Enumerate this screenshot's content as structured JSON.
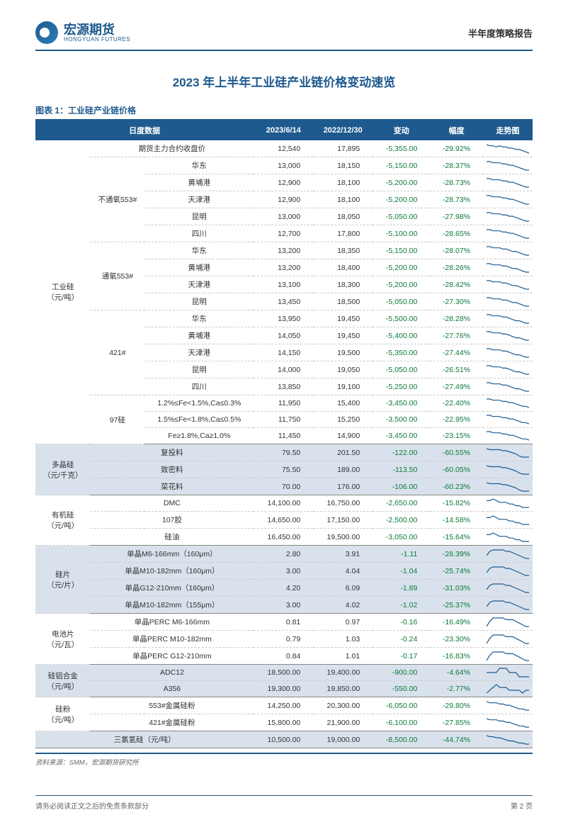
{
  "header": {
    "logo_cn": "宏源期货",
    "logo_en": "HONGYUAN FUTURES",
    "report_type": "半年度策略报告"
  },
  "main_title": "2023 年上半年工业硅产业链价格变动速览",
  "chart_label": "图表 1：工业硅产业链价格",
  "columns": {
    "daily": "日度数据",
    "d1": "2023/6/14",
    "d2": "2022/12/30",
    "change": "变动",
    "pct": "幅度",
    "trend": "走势图"
  },
  "colors": {
    "header_bg": "#1e5a8e",
    "stripe_even": "#d9e2ec",
    "negative": "#0a7a3a",
    "sparkline": "#1e5a8e"
  },
  "groups": [
    {
      "cat1": "工业硅\n（元/吨）",
      "rows": [
        {
          "cat2": "",
          "label": "期货主力合约收盘价",
          "v1": "12,540",
          "v2": "17,895",
          "chg": "-5,355.00",
          "pct": "-29.92%",
          "spark": [
            10,
            9,
            9,
            8,
            9,
            8,
            8,
            7,
            7,
            6,
            6,
            5,
            4,
            3
          ]
        },
        {
          "cat2": "不通氧553#",
          "label": "华东",
          "v1": "13,000",
          "v2": "18,150",
          "chg": "-5,150.00",
          "pct": "-28.37%",
          "spark": [
            10,
            10,
            9,
            9,
            9,
            8,
            8,
            7,
            7,
            6,
            5,
            4,
            3,
            3
          ]
        },
        {
          "cat2": "",
          "label": "黄埔港",
          "v1": "12,900",
          "v2": "18,100",
          "chg": "-5,200.00",
          "pct": "-28.73%",
          "spark": [
            10,
            10,
            9,
            9,
            9,
            8,
            8,
            7,
            7,
            6,
            5,
            4,
            3,
            3
          ]
        },
        {
          "cat2": "",
          "label": "天津港",
          "v1": "12,900",
          "v2": "18,100",
          "chg": "-5,200.00",
          "pct": "-28.73%",
          "spark": [
            10,
            10,
            9,
            9,
            9,
            8,
            8,
            7,
            7,
            6,
            5,
            4,
            3,
            3
          ]
        },
        {
          "cat2": "",
          "label": "昆明",
          "v1": "13,000",
          "v2": "18,050",
          "chg": "-5,050.00",
          "pct": "-27.98%",
          "spark": [
            10,
            10,
            9,
            9,
            9,
            8,
            8,
            7,
            7,
            6,
            5,
            4,
            3,
            3
          ]
        },
        {
          "cat2": "",
          "label": "四川",
          "v1": "12,700",
          "v2": "17,800",
          "chg": "-5,100.00",
          "pct": "-28.65%",
          "spark": [
            10,
            10,
            9,
            9,
            9,
            8,
            8,
            7,
            7,
            6,
            5,
            4,
            3,
            3
          ]
        },
        {
          "cat2": "通氧553#",
          "label": "华东",
          "v1": "13,200",
          "v2": "18,350",
          "chg": "-5,150.00",
          "pct": "-28.07%",
          "spark": [
            10,
            10,
            9,
            9,
            9,
            8,
            8,
            7,
            6,
            6,
            5,
            4,
            3,
            3
          ]
        },
        {
          "cat2": "",
          "label": "黄埔港",
          "v1": "13,200",
          "v2": "18,400",
          "chg": "-5,200.00",
          "pct": "-28.26%",
          "spark": [
            10,
            10,
            9,
            9,
            9,
            8,
            8,
            7,
            6,
            6,
            5,
            4,
            3,
            3
          ]
        },
        {
          "cat2": "",
          "label": "天津港",
          "v1": "13,100",
          "v2": "18,300",
          "chg": "-5,200.00",
          "pct": "-28.42%",
          "spark": [
            10,
            10,
            9,
            9,
            9,
            8,
            8,
            7,
            6,
            6,
            5,
            4,
            3,
            3
          ]
        },
        {
          "cat2": "",
          "label": "昆明",
          "v1": "13,450",
          "v2": "18,500",
          "chg": "-5,050.00",
          "pct": "-27.30%",
          "spark": [
            10,
            10,
            9,
            9,
            9,
            8,
            8,
            7,
            6,
            6,
            5,
            4,
            3,
            3
          ]
        },
        {
          "cat2": "421#",
          "label": "华东",
          "v1": "13,950",
          "v2": "19,450",
          "chg": "-5,500.00",
          "pct": "-28.28%",
          "spark": [
            10,
            10,
            9,
            9,
            9,
            8,
            8,
            7,
            6,
            5,
            5,
            4,
            3,
            3
          ]
        },
        {
          "cat2": "",
          "label": "黄埔港",
          "v1": "14,050",
          "v2": "19,450",
          "chg": "-5,400.00",
          "pct": "-27.76%",
          "spark": [
            10,
            10,
            9,
            9,
            9,
            8,
            8,
            7,
            6,
            5,
            5,
            4,
            3,
            3
          ]
        },
        {
          "cat2": "",
          "label": "天津港",
          "v1": "14,150",
          "v2": "19,500",
          "chg": "-5,350.00",
          "pct": "-27.44%",
          "spark": [
            10,
            10,
            9,
            9,
            9,
            8,
            8,
            7,
            6,
            5,
            5,
            4,
            3,
            3
          ]
        },
        {
          "cat2": "",
          "label": "昆明",
          "v1": "14,000",
          "v2": "19,050",
          "chg": "-5,050.00",
          "pct": "-26.51%",
          "spark": [
            10,
            10,
            9,
            9,
            9,
            8,
            8,
            7,
            6,
            5,
            5,
            4,
            3,
            3
          ]
        },
        {
          "cat2": "",
          "label": "四川",
          "v1": "13,850",
          "v2": "19,100",
          "chg": "-5,250.00",
          "pct": "-27.49%",
          "spark": [
            10,
            10,
            9,
            9,
            9,
            8,
            8,
            7,
            6,
            5,
            5,
            4,
            3,
            3
          ]
        },
        {
          "cat2": "97硅",
          "label": "1.2%≤Fe<1.5%,Ca≤0.3%",
          "v1": "11,950",
          "v2": "15,400",
          "chg": "-3,450.00",
          "pct": "-22.40%",
          "spark": [
            10,
            10,
            9,
            9,
            9,
            8,
            8,
            7,
            7,
            6,
            5,
            4,
            4,
            3
          ]
        },
        {
          "cat2": "",
          "label": "1.5%≤Fe<1.8%,Ca≤0.5%",
          "v1": "11,750",
          "v2": "15,250",
          "chg": "-3,500.00",
          "pct": "-22.95%",
          "spark": [
            10,
            10,
            9,
            9,
            9,
            8,
            8,
            7,
            7,
            6,
            5,
            4,
            4,
            3
          ]
        },
        {
          "cat2": "",
          "label": "Fe≥1.8%,Ca≥1.0%",
          "v1": "11,450",
          "v2": "14,900",
          "chg": "-3,450.00",
          "pct": "-23.15%",
          "spark": [
            10,
            10,
            9,
            9,
            9,
            8,
            8,
            7,
            7,
            6,
            5,
            4,
            4,
            3
          ]
        }
      ]
    },
    {
      "cat1": "多晶硅\n（元/千克）",
      "rows": [
        {
          "cat2": "",
          "label": "复投料",
          "v1": "79.50",
          "v2": "201.50",
          "chg": "-122.00",
          "pct": "-60.55%",
          "spark": [
            10,
            9,
            9,
            9,
            9,
            8,
            8,
            7,
            6,
            5,
            3,
            2,
            2,
            2
          ]
        },
        {
          "cat2": "",
          "label": "致密料",
          "v1": "75.50",
          "v2": "189.00",
          "chg": "-113.50",
          "pct": "-60.05%",
          "spark": [
            10,
            9,
            9,
            9,
            9,
            8,
            8,
            7,
            6,
            5,
            3,
            2,
            2,
            2
          ]
        },
        {
          "cat2": "",
          "label": "菜花料",
          "v1": "70.00",
          "v2": "176.00",
          "chg": "-106.00",
          "pct": "-60.23%",
          "spark": [
            10,
            9,
            9,
            9,
            9,
            8,
            8,
            7,
            6,
            5,
            3,
            2,
            2,
            2
          ]
        }
      ]
    },
    {
      "cat1": "有机硅\n（元/吨）",
      "rows": [
        {
          "cat2": "",
          "label": "DMC",
          "v1": "14,100.00",
          "v2": "16,750.00",
          "chg": "-2,650.00",
          "pct": "-15.82%",
          "spark": [
            9,
            9,
            10,
            9,
            8,
            8,
            8,
            7,
            7,
            6,
            6,
            5,
            5,
            5
          ]
        },
        {
          "cat2": "",
          "label": "107胶",
          "v1": "14,650.00",
          "v2": "17,150.00",
          "chg": "-2,500.00",
          "pct": "-14.58%",
          "spark": [
            9,
            9,
            10,
            9,
            8,
            8,
            8,
            7,
            7,
            6,
            6,
            5,
            5,
            5
          ]
        },
        {
          "cat2": "",
          "label": "硅油",
          "v1": "16,450.00",
          "v2": "19,500.00",
          "chg": "-3,050.00",
          "pct": "-15.64%",
          "spark": [
            9,
            9,
            10,
            9,
            8,
            8,
            8,
            7,
            7,
            6,
            6,
            5,
            5,
            5
          ]
        }
      ]
    },
    {
      "cat1": "硅片\n（元/片）",
      "rows": [
        {
          "cat2": "",
          "label": "单晶M6-166mm（160μm）",
          "v1": "2.80",
          "v2": "3.91",
          "chg": "-1.11",
          "pct": "-28.39%",
          "spark": [
            5,
            8,
            9,
            9,
            9,
            9,
            8,
            8,
            7,
            6,
            5,
            4,
            3,
            3
          ]
        },
        {
          "cat2": "",
          "label": "单晶M10-182mm（160μm）",
          "v1": "3.00",
          "v2": "4.04",
          "chg": "-1.04",
          "pct": "-25.74%",
          "spark": [
            5,
            8,
            9,
            9,
            9,
            9,
            8,
            8,
            7,
            6,
            5,
            4,
            3,
            3
          ]
        },
        {
          "cat2": "",
          "label": "单晶G12-210mm（160μm）",
          "v1": "4.20",
          "v2": "6.09",
          "chg": "-1.89",
          "pct": "-31.03%",
          "spark": [
            5,
            8,
            9,
            9,
            9,
            9,
            8,
            8,
            7,
            6,
            5,
            4,
            3,
            3
          ]
        },
        {
          "cat2": "",
          "label": "单晶M10-182mm（155μm）",
          "v1": "3.00",
          "v2": "4.02",
          "chg": "-1.02",
          "pct": "-25.37%",
          "spark": [
            5,
            8,
            9,
            9,
            9,
            9,
            8,
            8,
            7,
            6,
            5,
            4,
            3,
            3
          ]
        }
      ]
    },
    {
      "cat1": "电池片\n（元/瓦）",
      "rows": [
        {
          "cat2": "",
          "label": "单晶PERC M6-166mm",
          "v1": "0.81",
          "v2": "0.97",
          "chg": "-0.16",
          "pct": "-16.49%",
          "spark": [
            4,
            7,
            9,
            9,
            9,
            9,
            8,
            8,
            8,
            7,
            6,
            5,
            4,
            4
          ]
        },
        {
          "cat2": "",
          "label": "单晶PERC M10-182mm",
          "v1": "0.79",
          "v2": "1.03",
          "chg": "-0.24",
          "pct": "-23.30%",
          "spark": [
            4,
            7,
            9,
            9,
            9,
            9,
            8,
            8,
            8,
            7,
            6,
            5,
            4,
            4
          ]
        },
        {
          "cat2": "",
          "label": "单晶PERC G12-210mm",
          "v1": "0.84",
          "v2": "1.01",
          "chg": "-0.17",
          "pct": "-16.83%",
          "spark": [
            4,
            7,
            9,
            9,
            9,
            9,
            8,
            8,
            8,
            7,
            6,
            5,
            4,
            4
          ]
        }
      ]
    },
    {
      "cat1": "硅铝合金\n（元/吨）",
      "rows": [
        {
          "cat2": "",
          "label": "ADC12",
          "v1": "18,500.00",
          "v2": "19,400.00",
          "chg": "-900.00",
          "pct": "-4.64%",
          "spark": [
            7,
            7,
            7,
            7,
            8,
            8,
            8,
            7,
            7,
            7,
            6,
            6,
            6,
            6
          ]
        },
        {
          "cat2": "",
          "label": "A356",
          "v1": "19,300.00",
          "v2": "19,850.00",
          "chg": "-550.00",
          "pct": "-2.77%",
          "spark": [
            6,
            7,
            8,
            9,
            8,
            8,
            8,
            7,
            7,
            7,
            7,
            6,
            7,
            7
          ]
        }
      ]
    },
    {
      "cat1": "硅粉\n（元/吨）",
      "rows": [
        {
          "cat2": "",
          "label": "553#金属硅粉",
          "v1": "14,250.00",
          "v2": "20,300.00",
          "chg": "-6,050.00",
          "pct": "-29.80%",
          "spark": [
            10,
            9,
            9,
            9,
            8,
            8,
            7,
            7,
            6,
            5,
            4,
            4,
            3,
            3
          ]
        },
        {
          "cat2": "",
          "label": "421#金属硅粉",
          "v1": "15,800.00",
          "v2": "21,900.00",
          "chg": "-6,100.00",
          "pct": "-27.85%",
          "spark": [
            10,
            9,
            9,
            9,
            8,
            8,
            7,
            7,
            6,
            5,
            4,
            4,
            3,
            3
          ]
        }
      ]
    },
    {
      "cat1": "",
      "rows": [
        {
          "cat2": "",
          "label": "三氯氢硅（元/吨）",
          "v1": "10,500.00",
          "v2": "19,000.00",
          "chg": "-8,500.00",
          "pct": "-44.74%",
          "spark": [
            10,
            9,
            9,
            8,
            8,
            7,
            6,
            5,
            5,
            4,
            3,
            3,
            2,
            2
          ],
          "full_label": true
        }
      ]
    }
  ],
  "source": "资料来源：SMM，宏源期货研究所",
  "footer": {
    "left": "请务必阅读正文之后的免责条款部分",
    "right": "第 2 页"
  }
}
